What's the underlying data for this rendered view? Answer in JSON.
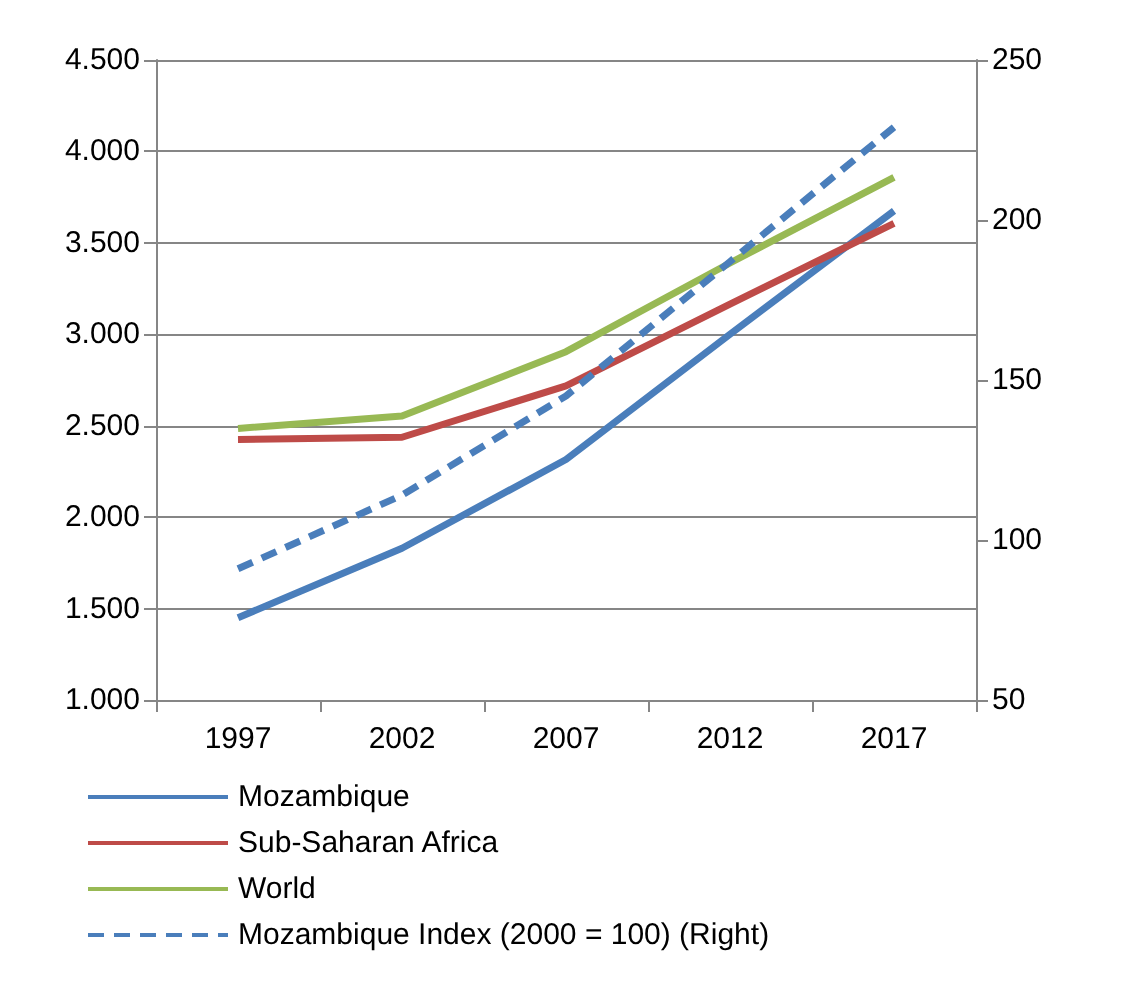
{
  "chart_data": {
    "type": "line",
    "categories": [
      "1997",
      "2002",
      "2007",
      "2012",
      "2017"
    ],
    "series": [
      {
        "name": "Mozambique",
        "color": "#4a7ebb",
        "values": [
          1450,
          1830,
          2315,
          3000,
          3675
        ]
      },
      {
        "name": "Sub-Saharan Africa",
        "color": "#be4b48",
        "values": [
          2425,
          2437,
          2718,
          3165,
          3607
        ]
      },
      {
        "name": "World",
        "color": "#98b954",
        "values": [
          2485,
          2553,
          2905,
          3390,
          3858
        ]
      },
      {
        "name": "Mozambique Index (2000 = 100) (Right)",
        "color": "#4a7ebb",
        "values": [
          91,
          114,
          145,
          187,
          229
        ],
        "axis": "y2",
        "line_style": "dashed"
      }
    ],
    "ylim": [
      1000,
      4500
    ],
    "yticks": [
      {
        "value": 1000,
        "label": "1.000"
      },
      {
        "value": 1500,
        "label": "1.500"
      },
      {
        "value": 2000,
        "label": "2.000"
      },
      {
        "value": 2500,
        "label": "2.500"
      },
      {
        "value": 3000,
        "label": "3.000"
      },
      {
        "value": 3500,
        "label": "3.500"
      },
      {
        "value": 4000,
        "label": "4.000"
      },
      {
        "value": 4500,
        "label": "4.500"
      }
    ],
    "y2lim": [
      50,
      250
    ],
    "y2ticks": [
      50,
      100,
      150,
      200,
      250
    ],
    "grid": "y",
    "legend": "bottom",
    "marker": "none",
    "line_style": "solid"
  }
}
